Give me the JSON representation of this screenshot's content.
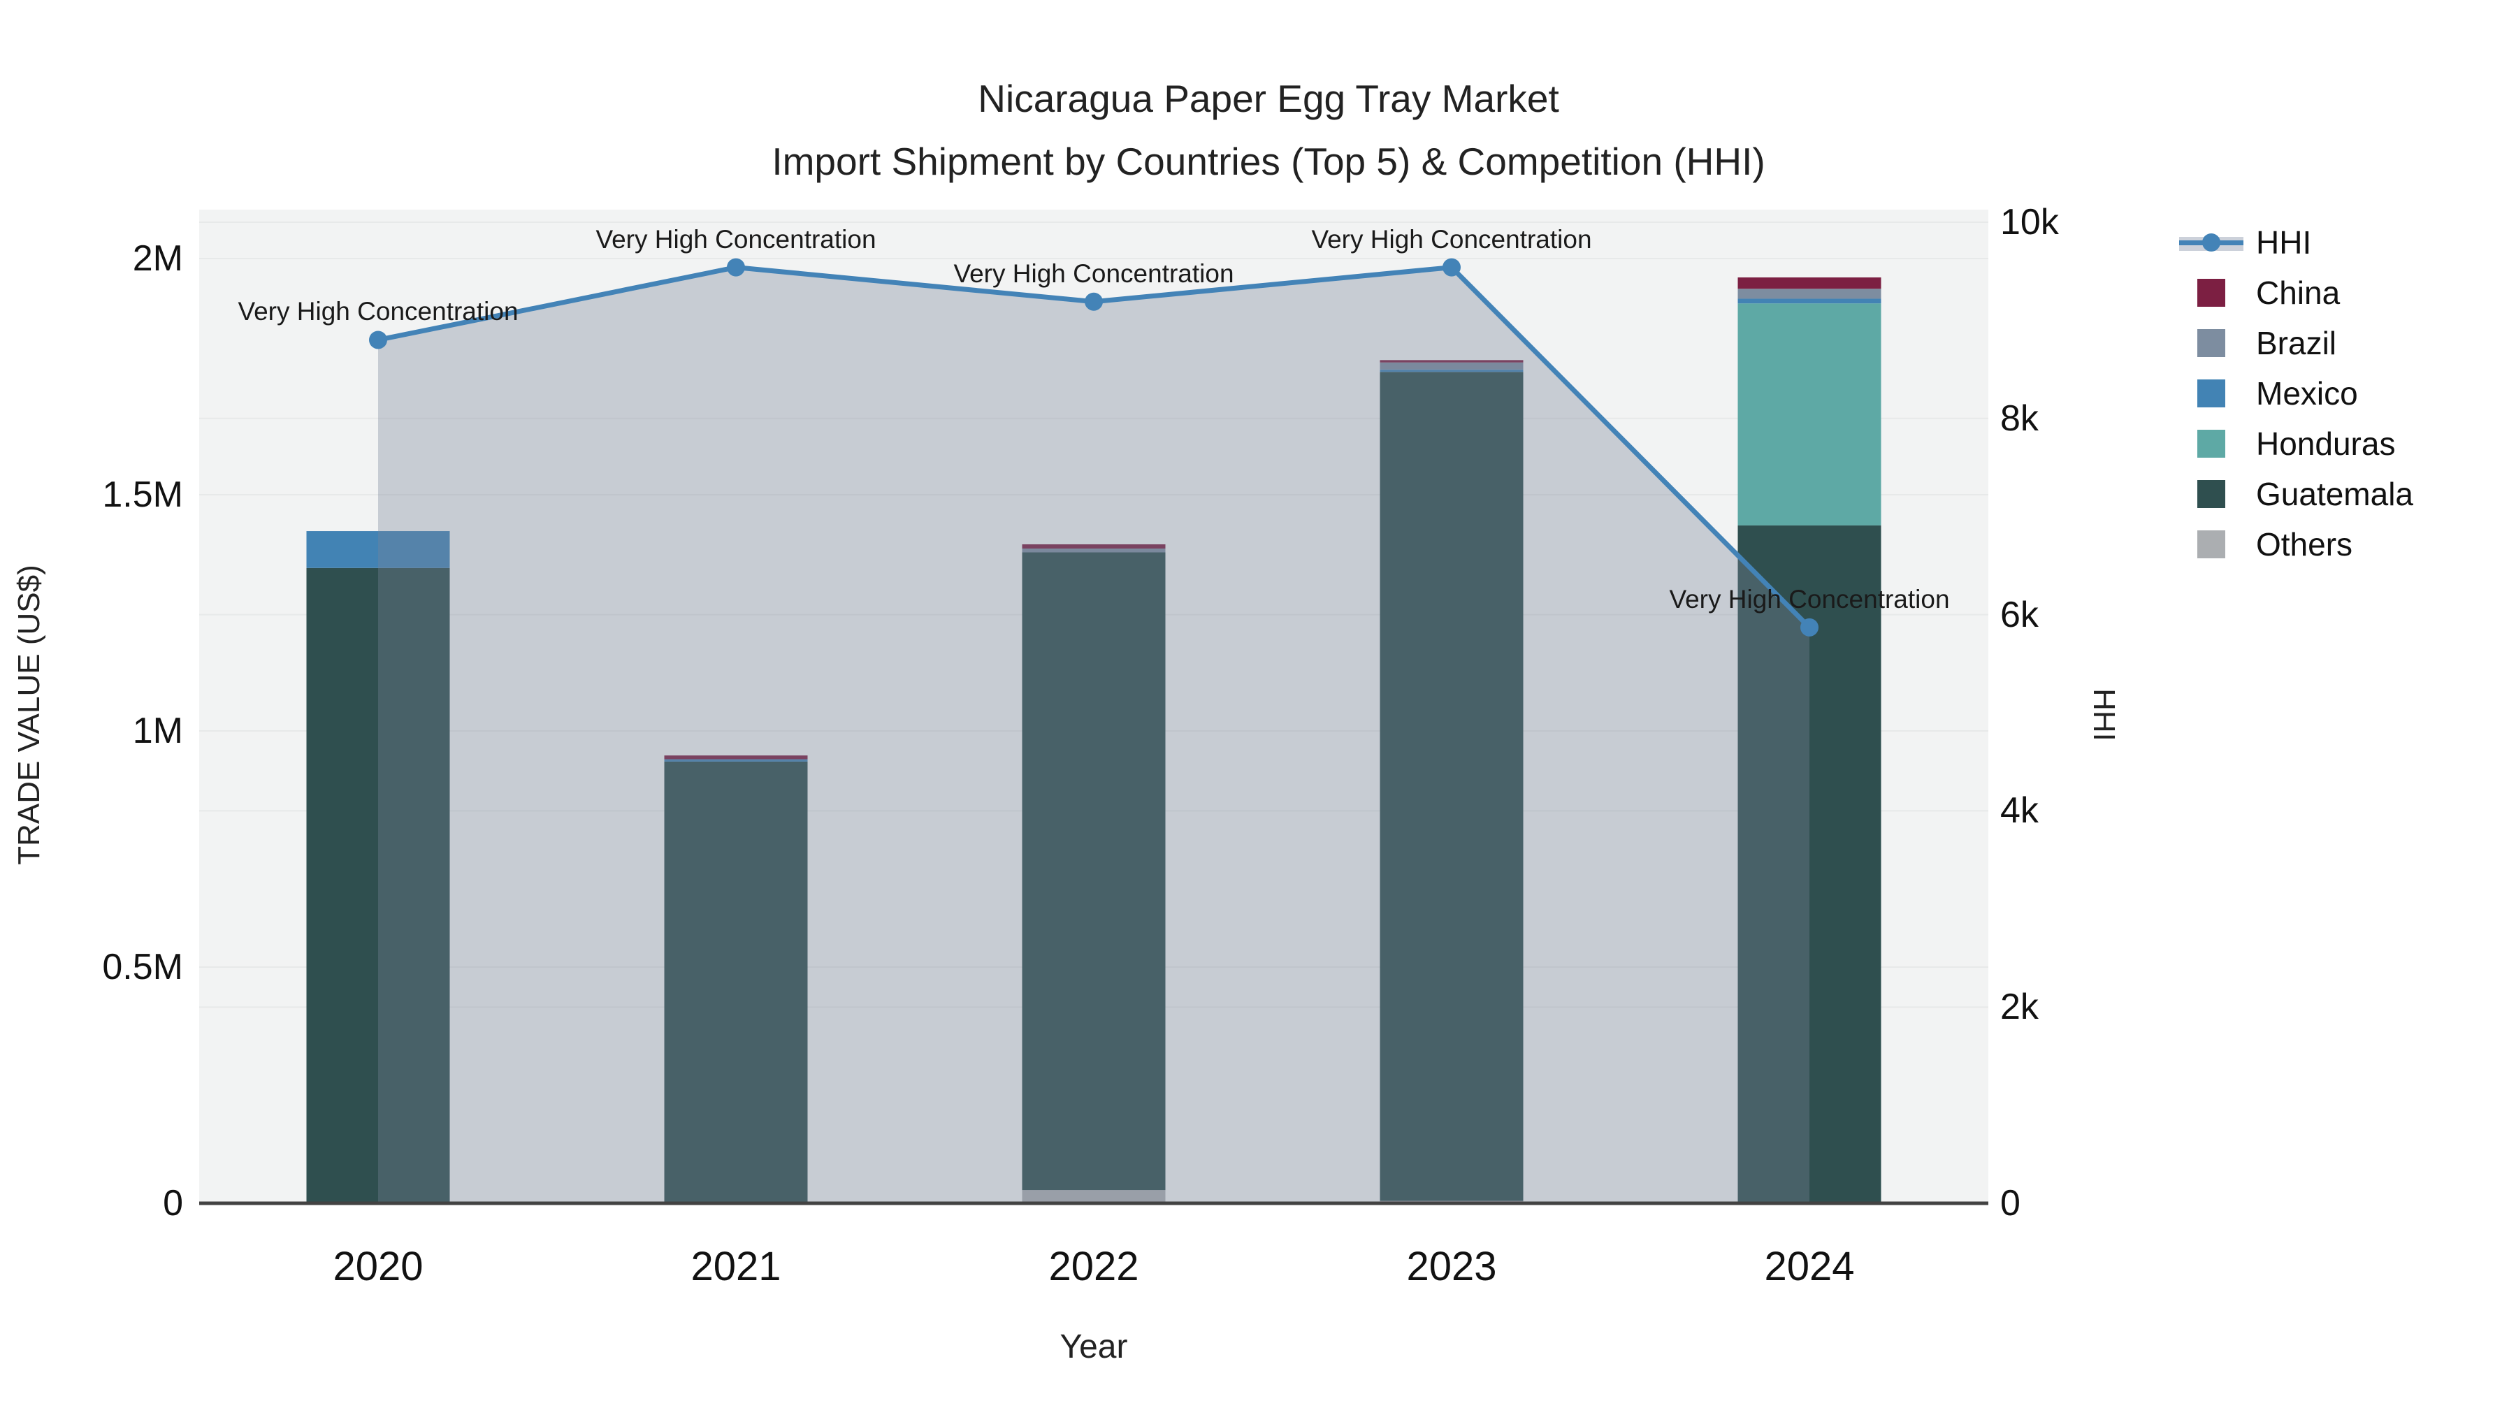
{
  "title": {
    "line1": "Nicaragua Paper Egg Tray Market",
    "line2": "Import Shipment by Countries (Top 5) & Competition (HHI)"
  },
  "chart_data": {
    "type": "combo: stacked bar (left axis) + line with area fill (right axis)",
    "title": "Nicaragua Paper Egg Tray Market - Import Shipment by Countries (Top 5) & Competition (HHI)",
    "categories": [
      "2020",
      "2021",
      "2022",
      "2023",
      "2024"
    ],
    "x_title": "Year",
    "y_left": {
      "title": "TRADE VALUE (US$)",
      "range": [
        0,
        2090000
      ],
      "grid": true,
      "ticks": [
        {
          "value": 0,
          "label": "0"
        },
        {
          "value": 500000,
          "label": "0.5M"
        },
        {
          "value": 1000000,
          "label": "1M"
        },
        {
          "value": 1500000,
          "label": "1.5M"
        },
        {
          "value": 2000000,
          "label": "2M"
        }
      ]
    },
    "y_right": {
      "title": "HHI",
      "range": [
        0,
        10000
      ],
      "grid": true,
      "ticks": [
        {
          "value": 0,
          "label": "0"
        },
        {
          "value": 2000,
          "label": "2k"
        },
        {
          "value": 4000,
          "label": "4k"
        },
        {
          "value": 6000,
          "label": "6k"
        },
        {
          "value": 8000,
          "label": "8k"
        },
        {
          "value": 10000,
          "label": "10k"
        }
      ]
    },
    "bar_series_bottom_to_top": [
      {
        "name": "Others",
        "color": "#abaeb1",
        "values": [
          0,
          0,
          28000,
          5000,
          0
        ]
      },
      {
        "name": "Guatemala",
        "color": "#2f4f4f",
        "values": [
          1345000,
          935000,
          1350000,
          1755000,
          1435000
        ]
      },
      {
        "name": "Honduras",
        "color": "#5ea9a5",
        "values": [
          0,
          0,
          0,
          0,
          470000
        ]
      },
      {
        "name": "Mexico",
        "color": "#4283b4",
        "values": [
          78000,
          5000,
          0,
          5000,
          10000
        ]
      },
      {
        "name": "Brazil",
        "color": "#7d8da0",
        "values": [
          0,
          0,
          8000,
          15000,
          21000
        ]
      },
      {
        "name": "China",
        "color": "#7c1f42",
        "values": [
          0,
          8000,
          9000,
          5000,
          24000
        ]
      }
    ],
    "bar_totals": [
      1423000,
      948000,
      1395000,
      1785000,
      1960000
    ],
    "line_series": {
      "name": "HHI",
      "axis": "right",
      "color": "#4383b7",
      "area_fill": "rgba(120,131,153,0.35)",
      "values": [
        8800,
        9540,
        9190,
        9540,
        5870
      ]
    },
    "annotations": [
      {
        "category": "2020",
        "text": "Very High Concentration"
      },
      {
        "category": "2021",
        "text": "Very High Concentration"
      },
      {
        "category": "2022",
        "text": "Very High Concentration"
      },
      {
        "category": "2023",
        "text": "Very High Concentration"
      },
      {
        "category": "2024",
        "text": "Very High Concentration"
      }
    ],
    "legend": [
      {
        "label": "HHI",
        "type": "line",
        "color": "#4383b7"
      },
      {
        "label": "China",
        "type": "box",
        "color": "#7c1f42"
      },
      {
        "label": "Brazil",
        "type": "box",
        "color": "#7d8da0"
      },
      {
        "label": "Mexico",
        "type": "box",
        "color": "#4283b4"
      },
      {
        "label": "Honduras",
        "type": "box",
        "color": "#5ea9a5"
      },
      {
        "label": "Guatemala",
        "type": "box",
        "color": "#2f4f4f"
      },
      {
        "label": "Others",
        "type": "box",
        "color": "#abaeb1"
      }
    ],
    "style": {
      "plot_background": "#f2f3f3",
      "gridline_color": "#e7e9e9",
      "axis_line_color": "#424242"
    }
  }
}
